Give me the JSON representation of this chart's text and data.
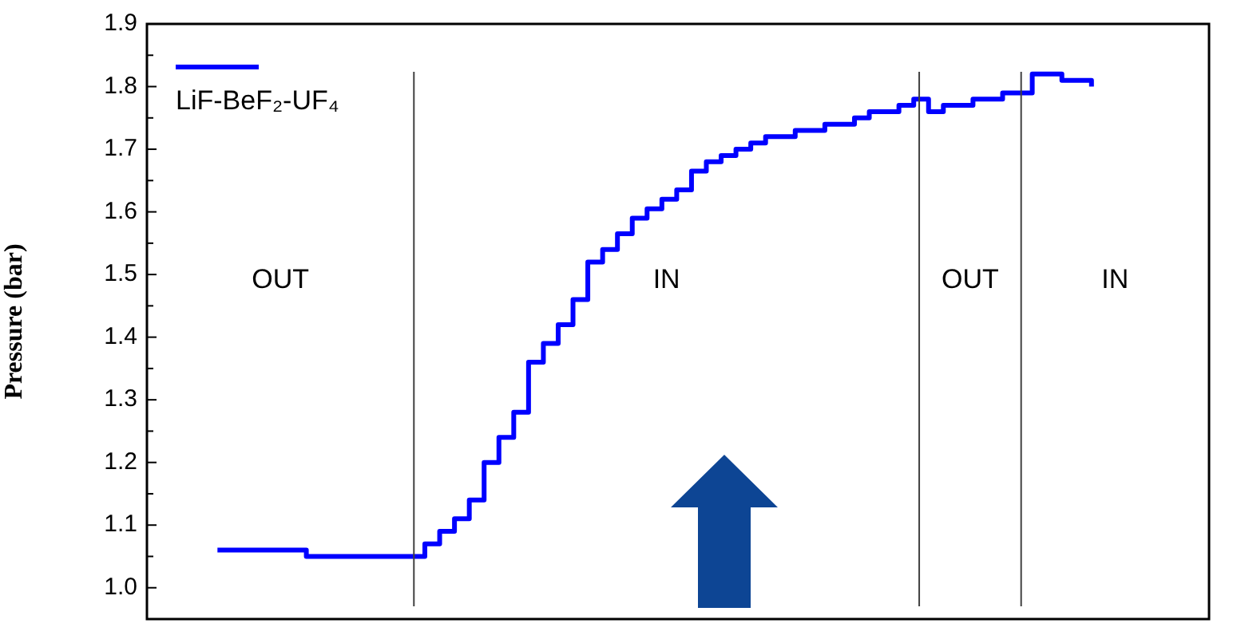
{
  "chart_data": {
    "type": "step",
    "ylabel": "Pressure (bar)",
    "categories": [
      null,
      null,
      null,
      null,
      null,
      null,
      null,
      null,
      null,
      null,
      null,
      null,
      null,
      null,
      null,
      null,
      null,
      null,
      null,
      null,
      null,
      null,
      null,
      null,
      null,
      null,
      null,
      null,
      null,
      null,
      null,
      null,
      null,
      null,
      null,
      null,
      null,
      null,
      null,
      null,
      null,
      null,
      null,
      null,
      null,
      null,
      null,
      null,
      null,
      null,
      null,
      null,
      null,
      null,
      null,
      null,
      null,
      null,
      null,
      null
    ],
    "ylim": [
      0.95,
      1.9
    ],
    "yticks": [
      {
        "value": 1,
        "label": "1.0"
      },
      1.1,
      1.2,
      1.3,
      1.4,
      1.5,
      1.6,
      1.7,
      1.8,
      1.9
    ],
    "tick_labels": "y",
    "grid": false,
    "legend": "top left",
    "marker": "none",
    "line_style": "solid",
    "series": [
      {
        "name": "LiF-BeF₂-UF₄",
        "color": "#0000ff",
        "values": [
          1.06,
          1.06,
          1.06,
          1.06,
          1.06,
          1.06,
          1.05,
          1.05,
          1.05,
          1.05,
          1.05,
          1.05,
          1.05,
          1.05,
          1.07,
          1.09,
          1.11,
          1.14,
          1.2,
          1.24,
          1.28,
          1.36,
          1.39,
          1.42,
          1.46,
          1.52,
          1.54,
          1.565,
          1.59,
          1.605,
          1.62,
          1.635,
          1.665,
          1.68,
          1.69,
          1.7,
          1.71,
          1.72,
          1.72,
          1.73,
          1.73,
          1.74,
          1.74,
          1.75,
          1.76,
          1.76,
          1.77,
          1.78,
          1.76,
          1.77,
          1.77,
          1.78,
          1.78,
          1.79,
          1.79,
          1.82,
          1.82,
          1.81,
          1.81,
          1.8
        ]
      }
    ],
    "annotations": [
      "OUT",
      "IN",
      "OUT",
      "IN"
    ]
  }
}
